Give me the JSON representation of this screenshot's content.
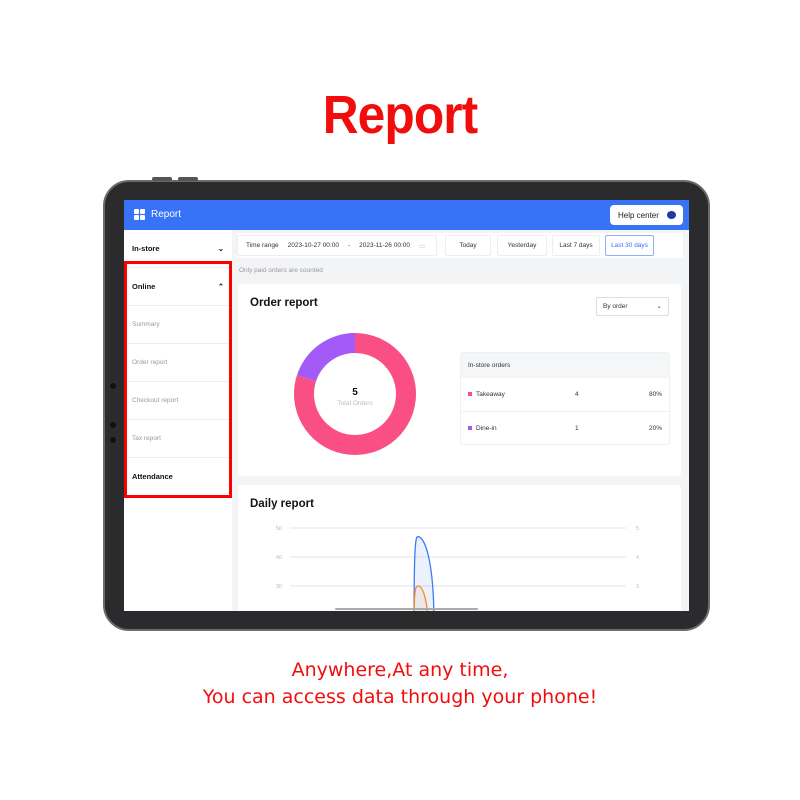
{
  "banner": {
    "title": "Report",
    "tagline_1": "Anywhere,At any time,",
    "tagline_2": "You can access data through your phone!"
  },
  "header": {
    "title": "Report",
    "help_label": "Help center"
  },
  "sidebar": {
    "items": [
      {
        "label": "In-store",
        "type": "group",
        "expanded": false
      },
      {
        "label": "Online",
        "type": "group",
        "expanded": true
      },
      {
        "label": "Summary",
        "type": "sub"
      },
      {
        "label": "Order report",
        "type": "sub"
      },
      {
        "label": "Checkout report",
        "type": "sub"
      },
      {
        "label": "Tax report",
        "type": "sub"
      },
      {
        "label": "Attendance",
        "type": "group"
      }
    ]
  },
  "filter": {
    "label": "Time range",
    "start": "2023-10-27 00:00",
    "sep": "-",
    "end": "2023-11-26 00:00",
    "buttons": [
      "Today",
      "Yesterday",
      "Last 7 days",
      "Last 30 days"
    ],
    "active": "Last 30 days"
  },
  "note": "Only paid orders are counted",
  "order_report": {
    "title": "Order report",
    "select": "By order",
    "total": "5",
    "total_label": "Total Orders",
    "table_header": "In-store orders",
    "rows": [
      {
        "name": "Takeaway",
        "count": "4",
        "pct": "80%",
        "color": "#f94f84"
      },
      {
        "name": "Dine-in",
        "count": "1",
        "pct": "20%",
        "color": "#a35af7"
      }
    ]
  },
  "chart_data": [
    {
      "type": "pie",
      "values": [
        4,
        1
      ],
      "categories": [
        "Takeaway",
        "Dine-in"
      ],
      "colors": [
        "#f94f84",
        "#a35af7"
      ]
    },
    {
      "type": "area",
      "title": "Daily report",
      "yticks_left": [
        "50",
        "40",
        "30"
      ],
      "yticks_right": [
        "5",
        "4",
        "3"
      ],
      "ylim_left": [
        0,
        50
      ],
      "series": [
        {
          "color": "#3f7bf6",
          "peak": 47
        },
        {
          "color": "#f88a2a",
          "peak": 30
        }
      ]
    }
  ],
  "daily_report": {
    "title": "Daily report"
  }
}
